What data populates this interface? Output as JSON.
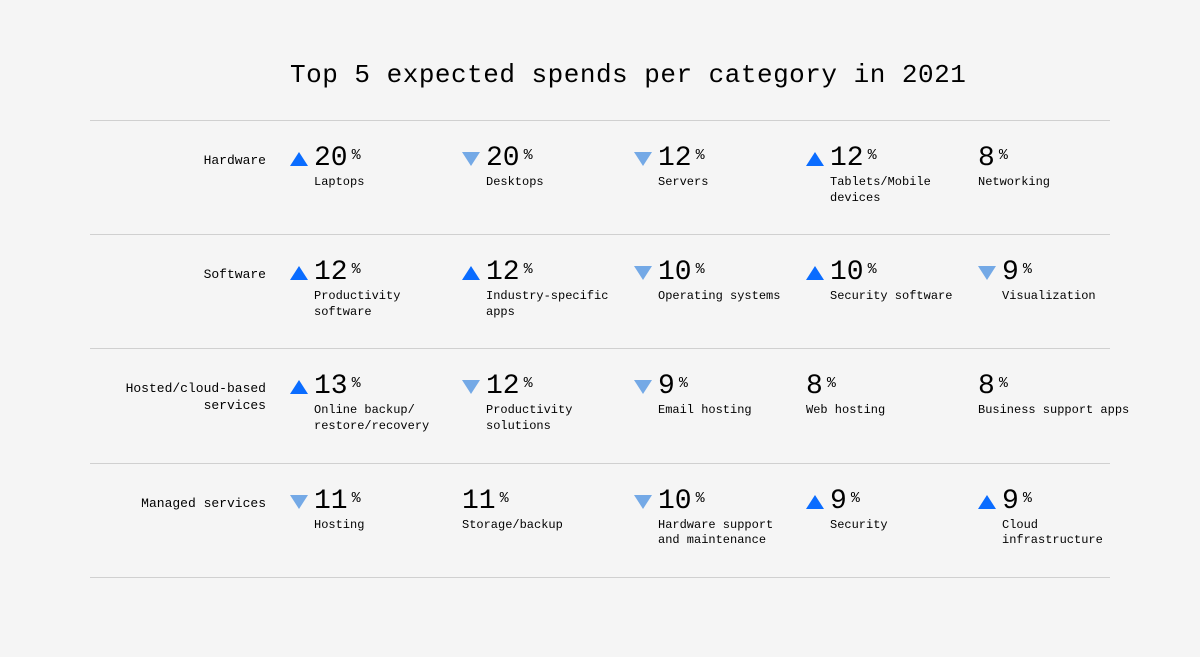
{
  "title": "Top 5 expected spends per category in 2021",
  "colors": {
    "up": "#0a6cff",
    "down": "#74a9e6",
    "text": "#000000",
    "bg": "#f5f5f5",
    "rule": "#d0d0d0"
  },
  "percent_symbol": "%",
  "rows": [
    {
      "label": "Hardware",
      "items": [
        {
          "value": "20",
          "label": "Laptops",
          "trend": "up"
        },
        {
          "value": "20",
          "label": "Desktops",
          "trend": "down"
        },
        {
          "value": "12",
          "label": "Servers",
          "trend": "down"
        },
        {
          "value": "12",
          "label": "Tablets/Mobile devices",
          "trend": "up"
        },
        {
          "value": "8",
          "label": "Networking",
          "trend": "none"
        }
      ]
    },
    {
      "label": "Software",
      "items": [
        {
          "value": "12",
          "label": "Productivity software",
          "trend": "up"
        },
        {
          "value": "12",
          "label": "Industry-specific apps",
          "trend": "up"
        },
        {
          "value": "10",
          "label": "Operating systems",
          "trend": "down"
        },
        {
          "value": "10",
          "label": "Security software",
          "trend": "up"
        },
        {
          "value": "9",
          "label": "Visualization",
          "trend": "down"
        }
      ]
    },
    {
      "label": "Hosted/cloud-based services",
      "items": [
        {
          "value": "13",
          "label": "Online backup/ restore/recovery",
          "trend": "up"
        },
        {
          "value": "12",
          "label": "Productivity solutions",
          "trend": "down"
        },
        {
          "value": "9",
          "label": "Email hosting",
          "trend": "down"
        },
        {
          "value": "8",
          "label": "Web hosting",
          "trend": "none"
        },
        {
          "value": "8",
          "label": "Business support apps",
          "trend": "none"
        }
      ]
    },
    {
      "label": "Managed services",
      "items": [
        {
          "value": "11",
          "label": "Hosting",
          "trend": "down"
        },
        {
          "value": "11",
          "label": "Storage/backup",
          "trend": "none"
        },
        {
          "value": "10",
          "label": "Hardware support and maintenance",
          "trend": "down"
        },
        {
          "value": "9",
          "label": "Security",
          "trend": "up"
        },
        {
          "value": "9",
          "label": "Cloud infrastructure",
          "trend": "up"
        }
      ]
    }
  ]
}
